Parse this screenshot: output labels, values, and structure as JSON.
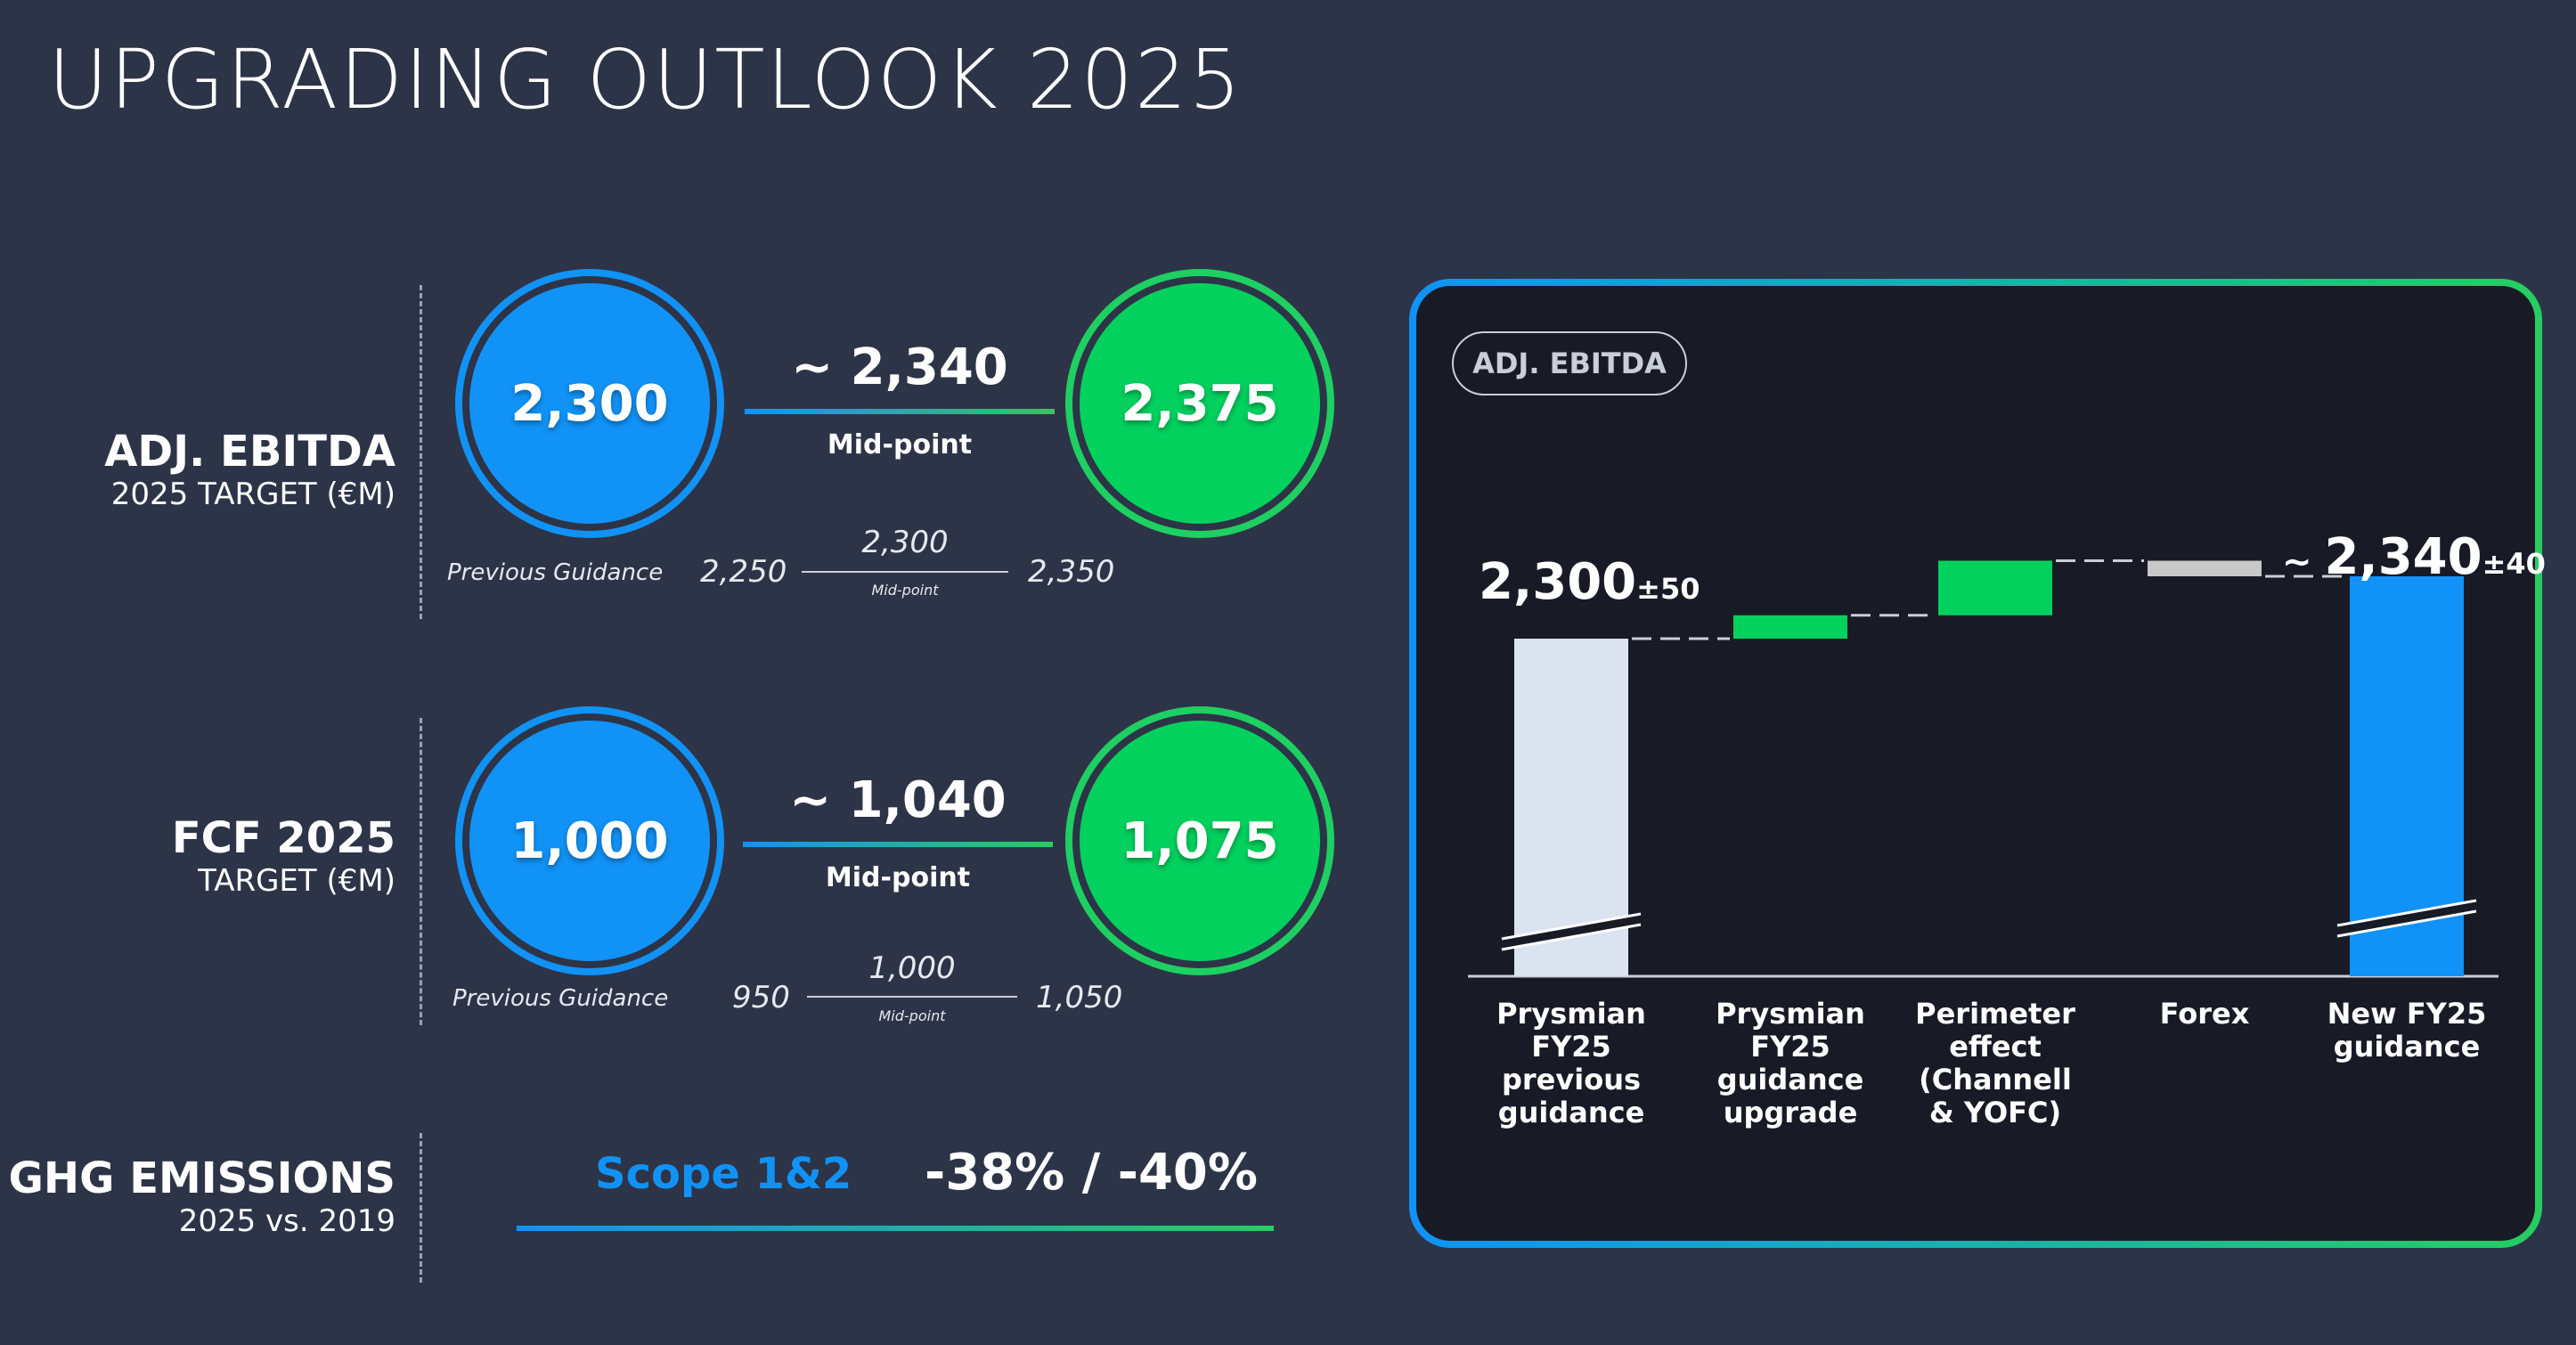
{
  "page": {
    "title": "UPGRADING OUTLOOK 2025"
  },
  "colors": {
    "background": "#2d3447",
    "blue": "#1192f6",
    "green": "#02d15e",
    "panel": "#181b26",
    "grey": "#c8c8c8",
    "start_bar": "#dbe3f1"
  },
  "ebitda": {
    "label": "ADJ. EBITDA",
    "sublabel": "2025 TARGET (€M)",
    "low": "2,300",
    "high": "2,375",
    "midpoint_value": "~ 2,340",
    "midpoint_label": "Mid-point",
    "previous": {
      "label": "Previous Guidance",
      "low": "2,250",
      "mid": "2,300",
      "mid_label": "Mid-point",
      "high": "2,350"
    }
  },
  "fcf": {
    "label": "FCF 2025",
    "sublabel": "TARGET (€M)",
    "low": "1,000",
    "high": "1,075",
    "midpoint_value": "~ 1,040",
    "midpoint_label": "Mid-point",
    "previous": {
      "label": "Previous Guidance",
      "low": "950",
      "mid": "1,000",
      "mid_label": "Mid-point",
      "high": "1,050"
    }
  },
  "ghg": {
    "label": "GHG EMISSIONS",
    "sublabel": "2025 vs. 2019",
    "scope": "Scope 1&2",
    "value": "-38% / -40%"
  },
  "panel": {
    "badge": "ADJ. EBITDA"
  },
  "chart_data": {
    "type": "waterfall",
    "title": "ADJ. EBITDA",
    "categories": [
      "Prysmian FY25 previous guidance",
      "Prysmian FY25 guidance upgrade",
      "Perimeter effect (Channell & YOFC)",
      "Forex",
      "New FY25 guidance"
    ],
    "category_lines": [
      [
        "Prysmian",
        "FY25",
        "previous",
        "guidance"
      ],
      [
        "Prysmian",
        "FY25",
        "guidance",
        "upgrade"
      ],
      [
        "Perimeter",
        "effect",
        "(Channell",
        "& YOFC)"
      ],
      [
        "Forex"
      ],
      [
        "New FY25",
        "guidance"
      ]
    ],
    "start": 2300,
    "deltas": [
      15,
      35,
      -10
    ],
    "end": 2340,
    "ylim": [
      2200,
      2400
    ],
    "axis_break": true,
    "bar_kinds": [
      "start",
      "increase",
      "increase",
      "decrease",
      "end"
    ],
    "labels": {
      "start": {
        "value": "2,300",
        "suffix": "±50"
      },
      "end": {
        "prefix": "~ ",
        "value": "2,340",
        "suffix": "±40"
      }
    },
    "grid": false,
    "legend": "none"
  }
}
